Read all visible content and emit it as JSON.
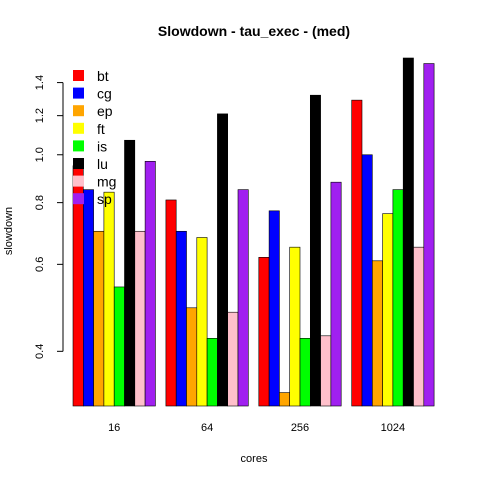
{
  "chart_data": {
    "type": "bar",
    "title": "Slowdown - tau_exec - (med)",
    "xlabel": "cores",
    "ylabel": "slowdown",
    "y_scale": "log",
    "ylim": [
      0.31,
      1.57
    ],
    "y_ticks": [
      0.4,
      0.6,
      0.8,
      1.0,
      1.2,
      1.4
    ],
    "y_tick_labels": [
      "0.4",
      "0.6",
      "0.8",
      "1.0",
      "1.2",
      "1.4"
    ],
    "categories": [
      "16",
      "64",
      "256",
      "1024"
    ],
    "legend_position": "top-left",
    "series": [
      {
        "name": "bt",
        "color": "#FF0000",
        "values": [
          0.95,
          0.81,
          0.62,
          1.29
        ]
      },
      {
        "name": "cg",
        "color": "#0000FF",
        "values": [
          0.85,
          0.7,
          0.77,
          1.0
        ]
      },
      {
        "name": "ep",
        "color": "#FFA500",
        "values": [
          0.7,
          0.49,
          0.33,
          0.61
        ]
      },
      {
        "name": "ft",
        "color": "#FFFF00",
        "values": [
          0.84,
          0.68,
          0.65,
          0.76
        ]
      },
      {
        "name": "is",
        "color": "#00FF00",
        "values": [
          0.54,
          0.425,
          0.425,
          0.85
        ]
      },
      {
        "name": "lu",
        "color": "#000000",
        "values": [
          1.07,
          1.21,
          1.32,
          1.57
        ]
      },
      {
        "name": "mg",
        "color": "#FFC0CB",
        "values": [
          0.7,
          0.48,
          0.43,
          0.65
        ]
      },
      {
        "name": "sp",
        "color": "#A020F0",
        "values": [
          0.97,
          0.85,
          0.88,
          1.53
        ]
      }
    ]
  }
}
